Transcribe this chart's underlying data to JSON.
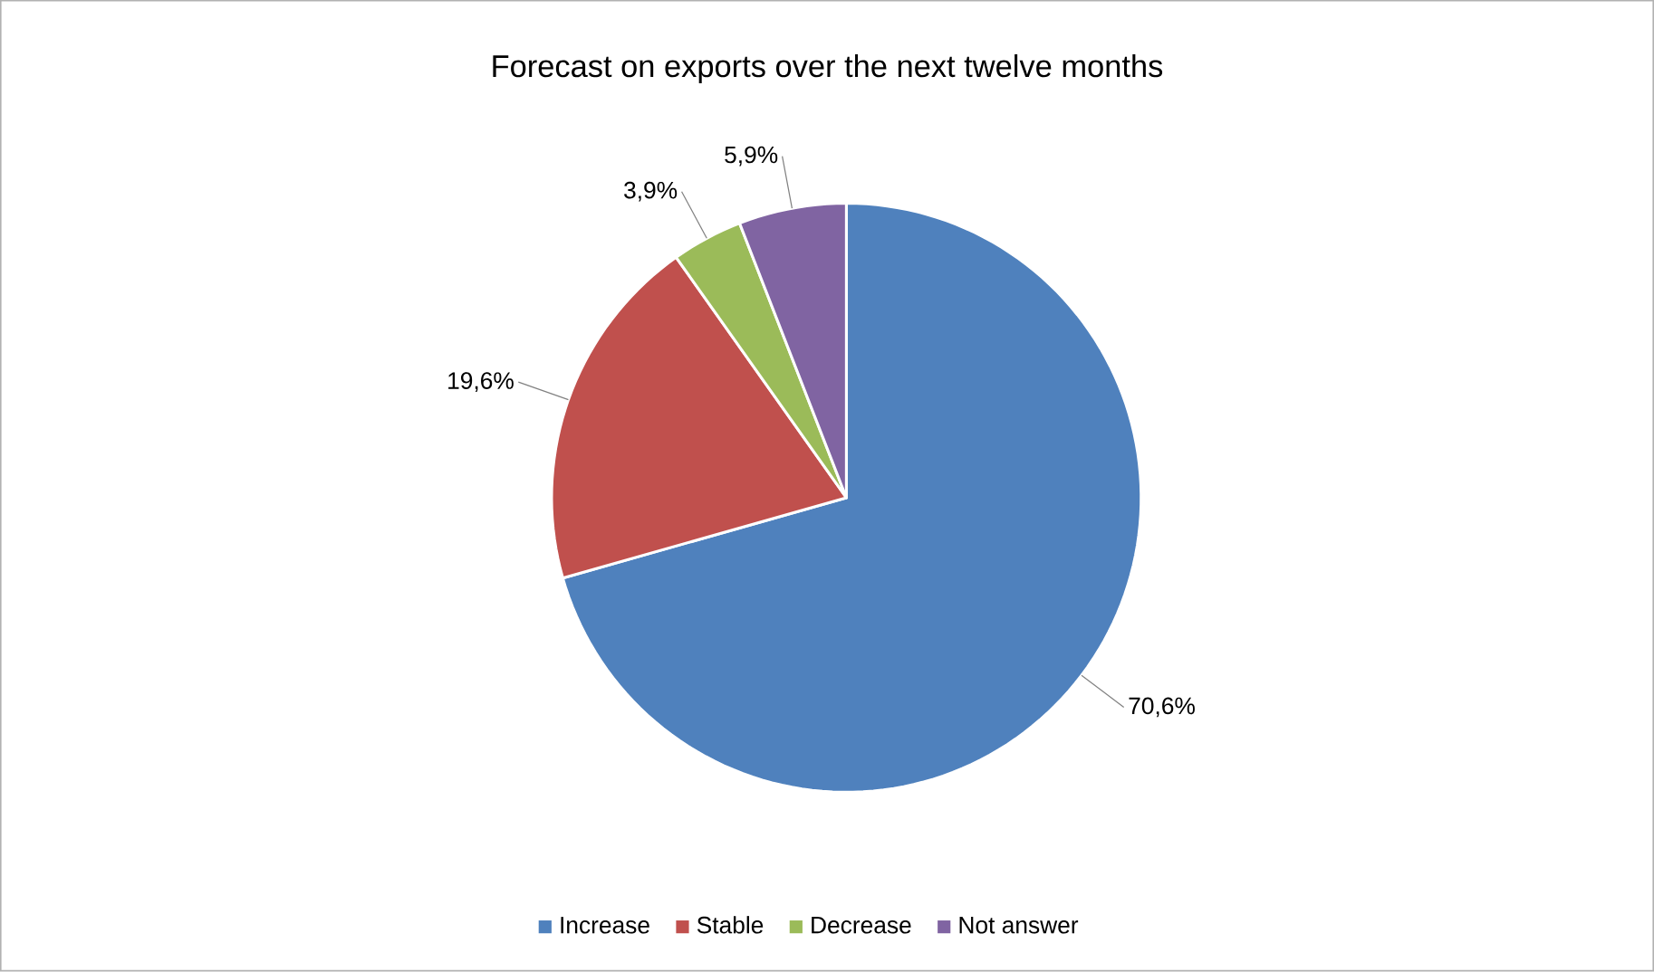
{
  "chart_data": {
    "type": "pie",
    "title": "Forecast on exports over the next twelve months",
    "categories": [
      "Increase",
      "Stable",
      "Decrease",
      "Not answer"
    ],
    "values": [
      70.6,
      19.6,
      3.9,
      5.9
    ],
    "colors": [
      "#4f81bd",
      "#c0504d",
      "#9bbb59",
      "#8064a2"
    ],
    "value_labels": [
      "70,6%",
      "19,6%",
      "3,9%",
      "5,9%"
    ],
    "legend": "bottom"
  }
}
